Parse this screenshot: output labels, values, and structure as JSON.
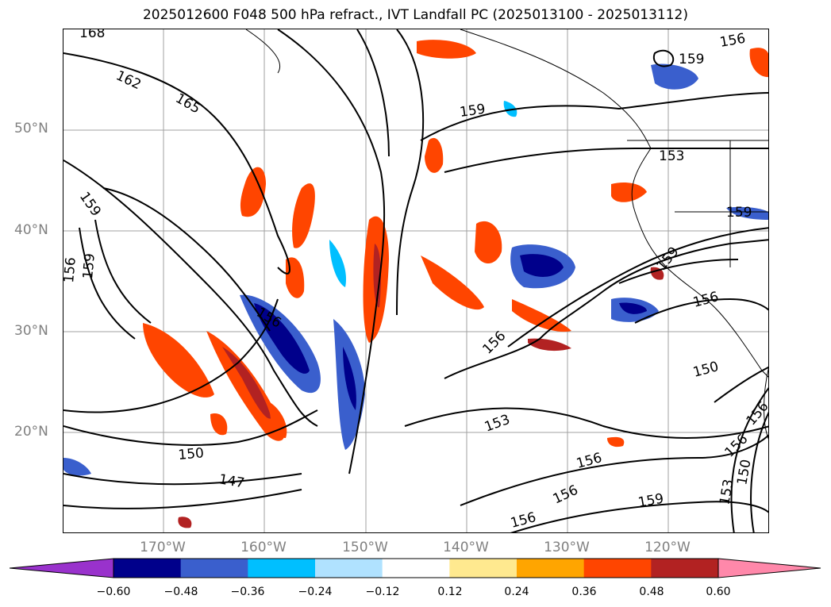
{
  "title": "2025012600 F048 500 hPa refract., IVT Landfall PC (2025013100 - 2025013112)",
  "lat_labels": [
    "50°N",
    "40°N",
    "30°N",
    "20°N"
  ],
  "lon_labels": [
    "170°W",
    "160°W",
    "150°W",
    "140°W",
    "130°W",
    "120°W"
  ],
  "colorbar": {
    "ticks": [
      "−0.60",
      "−0.48",
      "−0.36",
      "−0.24",
      "−0.12",
      "0.12",
      "0.24",
      "0.36",
      "0.48",
      "0.60"
    ],
    "colors": [
      "#9932cc",
      "#00008b",
      "#3a5fcd",
      "#00bfff",
      "#b0e2ff",
      "#ffffff",
      "#ffe98f",
      "#ffa500",
      "#ff4500",
      "#b22222",
      "#ff88aa"
    ]
  },
  "contour_labels": [
    "168",
    "162",
    "165",
    "159",
    "156",
    "159",
    "159",
    "156",
    "159",
    "153",
    "159",
    "159",
    "156",
    "156",
    "156",
    "150",
    "150",
    "147",
    "153",
    "156",
    "156",
    "156",
    "159",
    "153",
    "150",
    "156",
    "156"
  ]
}
